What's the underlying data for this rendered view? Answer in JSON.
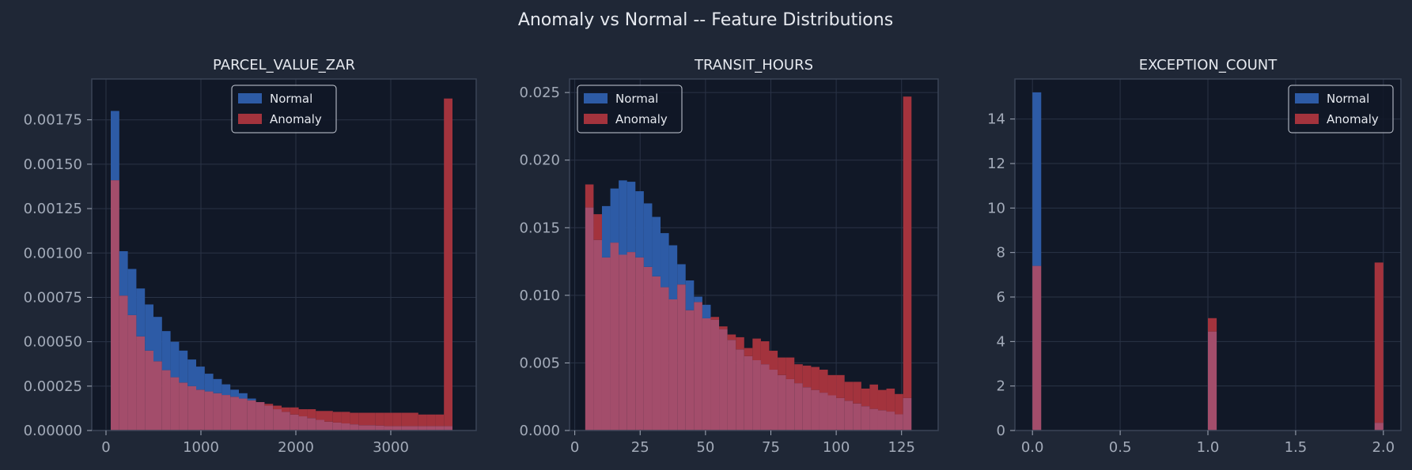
{
  "suptitle": "Anomaly vs Normal -- Feature Distributions",
  "colors": {
    "figure_bg": "#1f2736",
    "axes_bg": "#111827",
    "spine": "#3a4456",
    "grid": "#2a3346",
    "tick_text": "#a3abb9",
    "title_text": "#e6e9ef",
    "normal": "#2d5ba6",
    "anomaly": "#a3333d",
    "overlap": "#a34d6b"
  },
  "chart_data": [
    {
      "type": "bar",
      "title": "PARCEL_VALUE_ZAR",
      "xlabel": "",
      "ylabel": "",
      "xlim": [
        -150,
        3900
      ],
      "ylim": [
        0,
        0.00198
      ],
      "xticks": [
        0,
        1000,
        2000,
        3000
      ],
      "xtick_labels": [
        "0",
        "1000",
        "2000",
        "3000"
      ],
      "yticks": [
        0,
        0.00025,
        0.0005,
        0.00075,
        0.001,
        0.00125,
        0.0015,
        0.00175
      ],
      "ytick_labels": [
        "0.00000",
        "0.00025",
        "0.00050",
        "0.00075",
        "0.00100",
        "0.00125",
        "0.00150",
        "0.00175"
      ],
      "grid": true,
      "legend": "top-center",
      "bin_start": 50,
      "bin_width": 90,
      "series": [
        {
          "name": "Normal",
          "values": [
            0.0018,
            0.00101,
            0.00091,
            0.0008,
            0.00071,
            0.00064,
            0.00056,
            0.0005,
            0.00045,
            0.0004,
            0.00036,
            0.00032,
            0.00029,
            0.00026,
            0.00023,
            0.00021,
            0.00018,
            0.00016,
            0.00014,
            0.00012,
            0.000105,
            9e-05,
            8e-05,
            7e-05,
            6e-05,
            5e-05,
            4.5e-05,
            4e-05,
            3.5e-05,
            3e-05,
            3e-05,
            2.8e-05,
            2.5e-05,
            2.5e-05,
            2.5e-05,
            2.5e-05,
            2.5e-05,
            2.5e-05,
            2.5e-05,
            2.5e-05
          ]
        },
        {
          "name": "Anomaly",
          "values": [
            0.00141,
            0.00076,
            0.00065,
            0.00053,
            0.00045,
            0.00039,
            0.00034,
            0.0003,
            0.00027,
            0.00025,
            0.00023,
            0.00022,
            0.00021,
            0.0002,
            0.00019,
            0.00018,
            0.00017,
            0.00016,
            0.00015,
            0.00014,
            0.00013,
            0.00013,
            0.00012,
            0.00012,
            0.00011,
            0.00011,
            0.000105,
            0.000105,
            0.0001,
            0.0001,
            0.0001,
            0.0001,
            0.0001,
            0.0001,
            0.0001,
            0.0001,
            9e-05,
            9e-05,
            9e-05,
            0.00187
          ]
        }
      ]
    },
    {
      "type": "bar",
      "title": "TRANSIT_HOURS",
      "xlabel": "",
      "ylabel": "",
      "xlim": [
        -2,
        139
      ],
      "ylim": [
        0,
        0.026
      ],
      "xticks": [
        0,
        25,
        50,
        75,
        100,
        125
      ],
      "xtick_labels": [
        "0",
        "25",
        "50",
        "75",
        "100",
        "125"
      ],
      "yticks": [
        0,
        0.005,
        0.01,
        0.015,
        0.02,
        0.025
      ],
      "ytick_labels": [
        "0.000",
        "0.005",
        "0.010",
        "0.015",
        "0.020",
        "0.025"
      ],
      "grid": true,
      "legend": "top-left",
      "bin_start": 4,
      "bin_width": 3.2,
      "series": [
        {
          "name": "Normal",
          "values": [
            0.0165,
            0.0141,
            0.0166,
            0.0179,
            0.0185,
            0.0184,
            0.0177,
            0.0168,
            0.0158,
            0.0146,
            0.0137,
            0.0123,
            0.0111,
            0.0099,
            0.0093,
            0.0082,
            0.0075,
            0.0067,
            0.006,
            0.0055,
            0.0052,
            0.0049,
            0.0045,
            0.0041,
            0.0038,
            0.0035,
            0.0032,
            0.003,
            0.0028,
            0.0026,
            0.0024,
            0.0022,
            0.002,
            0.0018,
            0.0016,
            0.0015,
            0.0014,
            0.0012,
            0.0024
          ]
        },
        {
          "name": "Anomaly",
          "values": [
            0.0182,
            0.016,
            0.0128,
            0.0139,
            0.013,
            0.0132,
            0.0128,
            0.0121,
            0.0114,
            0.0106,
            0.0097,
            0.0108,
            0.0089,
            0.0095,
            0.0083,
            0.0084,
            0.0077,
            0.0071,
            0.0069,
            0.0061,
            0.0068,
            0.0066,
            0.0059,
            0.0054,
            0.0054,
            0.0049,
            0.0048,
            0.0047,
            0.0045,
            0.0041,
            0.0041,
            0.0036,
            0.0036,
            0.0031,
            0.0034,
            0.003,
            0.0031,
            0.0027,
            0.0247
          ]
        }
      ]
    },
    {
      "type": "bar",
      "title": "EXCEPTION_COUNT",
      "xlabel": "",
      "ylabel": "",
      "xlim": [
        -0.1,
        2.1
      ],
      "ylim": [
        0,
        15.8
      ],
      "xticks": [
        0,
        0.5,
        1,
        1.5,
        2
      ],
      "xtick_labels": [
        "0.0",
        "0.5",
        "1.0",
        "1.5",
        "2.0"
      ],
      "yticks": [
        0,
        2,
        4,
        6,
        8,
        10,
        12,
        14
      ],
      "ytick_labels": [
        "0",
        "2",
        "4",
        "6",
        "8",
        "10",
        "12",
        "14"
      ],
      "grid": true,
      "legend": "top-right",
      "bin_start": 0,
      "bin_width": 0.05,
      "series": [
        {
          "name": "Normal",
          "values": [
            15.2,
            0,
            0,
            0,
            0,
            0,
            0,
            0,
            0,
            0,
            0,
            0,
            0,
            0,
            0,
            0,
            0,
            0,
            0,
            0,
            4.45,
            0,
            0,
            0,
            0,
            0,
            0,
            0,
            0,
            0,
            0,
            0,
            0,
            0,
            0,
            0,
            0,
            0,
            0,
            0.35
          ]
        },
        {
          "name": "Anomaly",
          "values": [
            7.4,
            0,
            0,
            0,
            0,
            0,
            0,
            0,
            0,
            0,
            0,
            0,
            0,
            0,
            0,
            0,
            0,
            0,
            0,
            0,
            5.05,
            0,
            0,
            0,
            0,
            0,
            0,
            0,
            0,
            0,
            0,
            0,
            0,
            0,
            0,
            0,
            0,
            0,
            0,
            7.55
          ]
        }
      ]
    }
  ]
}
